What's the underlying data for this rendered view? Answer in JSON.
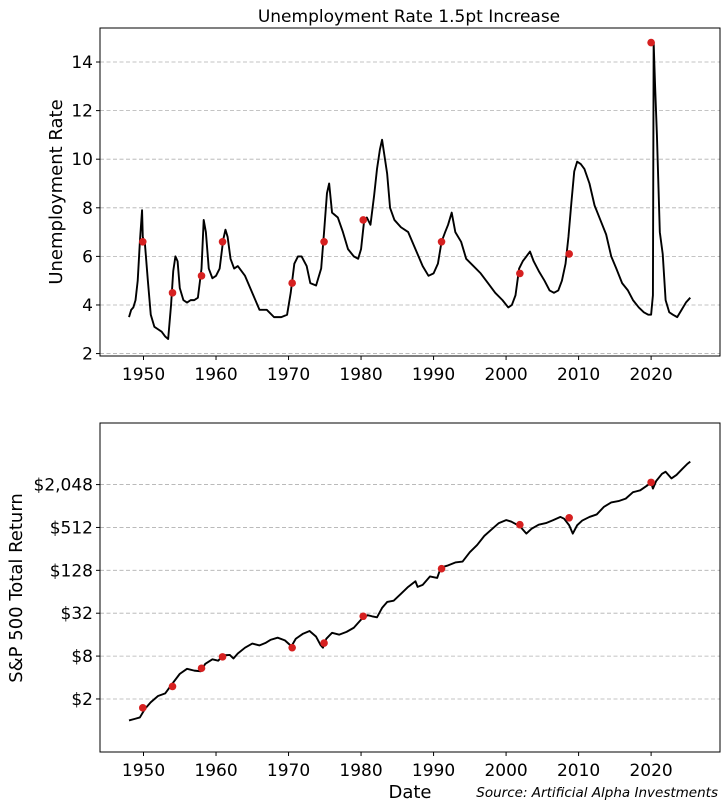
{
  "chart_data": [
    {
      "type": "line",
      "title": "Unemployment Rate 1.5pt Increase",
      "xlabel": "",
      "ylabel": "Unemployment Rate",
      "xlim": [
        1944,
        2029.5
      ],
      "ylim": [
        1.9,
        15.4
      ],
      "xticks": [
        1950,
        1960,
        1970,
        1980,
        1990,
        2000,
        2010,
        2020
      ],
      "xtick_labels": [
        "1950",
        "1960",
        "1970",
        "1980",
        "1990",
        "2000",
        "2010",
        "2020"
      ],
      "yticks": [
        2,
        4,
        6,
        8,
        10,
        12,
        14
      ],
      "ytick_labels": [
        "2",
        "4",
        "6",
        "8",
        "10",
        "12",
        "14"
      ],
      "grid": "y",
      "series": [
        {
          "name": "Unemployment Rate",
          "color": "#000000",
          "x": [
            1948.0,
            1948.3,
            1948.6,
            1948.9,
            1949.2,
            1949.5,
            1949.8,
            1949.9,
            1950.2,
            1950.6,
            1951.0,
            1951.5,
            1952.0,
            1952.5,
            1953.0,
            1953.4,
            1953.8,
            1954.1,
            1954.4,
            1954.7,
            1955.0,
            1955.5,
            1956.0,
            1956.5,
            1957.0,
            1957.5,
            1958.0,
            1958.3,
            1958.6,
            1959.0,
            1959.5,
            1960.0,
            1960.5,
            1961.0,
            1961.3,
            1961.6,
            1962.0,
            1962.5,
            1963.0,
            1964.0,
            1965.0,
            1966.0,
            1967.0,
            1968.0,
            1969.0,
            1969.8,
            1970.3,
            1970.8,
            1971.3,
            1971.8,
            1972.5,
            1973.0,
            1973.8,
            1974.5,
            1974.9,
            1975.3,
            1975.6,
            1976.0,
            1976.8,
            1977.5,
            1978.2,
            1979.0,
            1979.6,
            1980.0,
            1980.4,
            1980.8,
            1981.3,
            1981.8,
            1982.2,
            1982.6,
            1982.9,
            1983.2,
            1983.6,
            1984.0,
            1984.6,
            1985.5,
            1986.5,
            1987.5,
            1988.5,
            1989.3,
            1990.0,
            1990.6,
            1991.1,
            1991.6,
            1992.0,
            1992.5,
            1993.0,
            1993.8,
            1994.5,
            1995.5,
            1996.5,
            1997.5,
            1998.5,
            1999.5,
            2000.3,
            2000.8,
            2001.3,
            2001.8,
            2002.3,
            2002.8,
            2003.3,
            2003.8,
            2004.5,
            2005.3,
            2006.0,
            2006.6,
            2007.2,
            2007.7,
            2008.2,
            2008.6,
            2009.0,
            2009.4,
            2009.8,
            2010.3,
            2010.8,
            2011.5,
            2012.2,
            2013.0,
            2013.8,
            2014.5,
            2015.2,
            2016.0,
            2016.8,
            2017.5,
            2018.3,
            2019.0,
            2019.6,
            2020.0,
            2020.25,
            2020.35,
            2020.55,
            2020.8,
            2021.2,
            2021.6,
            2022.0,
            2022.5,
            2023.0,
            2023.6,
            2024.2,
            2024.8,
            2025.4
          ],
          "values": [
            3.5,
            3.8,
            3.9,
            4.2,
            5.0,
            6.6,
            7.9,
            6.8,
            6.5,
            5.0,
            3.6,
            3.1,
            3.0,
            2.9,
            2.7,
            2.6,
            4.0,
            5.4,
            6.0,
            5.8,
            4.7,
            4.2,
            4.1,
            4.2,
            4.2,
            4.3,
            5.5,
            7.5,
            7.0,
            5.5,
            5.1,
            5.2,
            5.5,
            6.7,
            7.1,
            6.8,
            5.9,
            5.5,
            5.6,
            5.2,
            4.5,
            3.8,
            3.8,
            3.5,
            3.5,
            3.6,
            4.5,
            5.7,
            6.0,
            6.0,
            5.6,
            4.9,
            4.8,
            5.5,
            7.0,
            8.6,
            9.0,
            7.8,
            7.6,
            7.0,
            6.3,
            6.0,
            5.9,
            6.3,
            7.4,
            7.6,
            7.3,
            8.5,
            9.6,
            10.4,
            10.8,
            10.2,
            9.4,
            8.0,
            7.5,
            7.2,
            7.0,
            6.3,
            5.6,
            5.2,
            5.3,
            5.7,
            6.6,
            7.0,
            7.3,
            7.8,
            7.0,
            6.6,
            5.9,
            5.6,
            5.3,
            4.9,
            4.5,
            4.2,
            3.9,
            4.0,
            4.4,
            5.5,
            5.8,
            6.0,
            6.2,
            5.8,
            5.4,
            5.0,
            4.6,
            4.5,
            4.6,
            5.0,
            5.7,
            6.8,
            8.2,
            9.5,
            9.9,
            9.8,
            9.6,
            9.0,
            8.1,
            7.5,
            6.9,
            6.0,
            5.5,
            4.9,
            4.6,
            4.2,
            3.9,
            3.7,
            3.6,
            3.6,
            4.4,
            14.8,
            13.0,
            11.0,
            7.0,
            6.1,
            4.2,
            3.7,
            3.6,
            3.5,
            3.8,
            4.1,
            4.3
          ]
        }
      ],
      "events": {
        "name": "1.5pt increase",
        "color": "#d62020",
        "x": [
          1949.9,
          1954.0,
          1958.0,
          1960.9,
          1970.5,
          1974.9,
          1980.3,
          1991.1,
          2001.9,
          2008.7,
          2020.0
        ],
        "values": [
          6.6,
          4.5,
          5.2,
          6.6,
          4.9,
          6.6,
          7.5,
          6.6,
          5.3,
          6.1,
          14.8
        ]
      }
    },
    {
      "type": "line",
      "title": "",
      "xlabel": "Date",
      "ylabel": "S&P 500 Total Return",
      "yscale": "log2",
      "xlim": [
        1944,
        2029.5
      ],
      "ylim": [
        0.36,
        15000
      ],
      "xticks": [
        1950,
        1960,
        1970,
        1980,
        1990,
        2000,
        2010,
        2020
      ],
      "xtick_labels": [
        "1950",
        "1960",
        "1970",
        "1980",
        "1990",
        "2000",
        "2010",
        "2020"
      ],
      "yticks": [
        2,
        8,
        32,
        128,
        512,
        2048
      ],
      "ytick_labels": [
        "$2",
        "$8",
        "$32",
        "$128",
        "$512",
        "$2,048"
      ],
      "grid": "y",
      "series": [
        {
          "name": "S&P 500 Total Return",
          "color": "#000000",
          "x": [
            1948.0,
            1948.8,
            1949.5,
            1950.2,
            1951.0,
            1952.0,
            1953.0,
            1954.0,
            1955.0,
            1956.0,
            1957.0,
            1957.9,
            1958.5,
            1959.5,
            1960.3,
            1961.0,
            1961.9,
            1962.4,
            1963.0,
            1964.0,
            1965.0,
            1966.0,
            1966.8,
            1967.5,
            1968.5,
            1969.5,
            1970.4,
            1971.0,
            1972.0,
            1972.9,
            1973.8,
            1974.4,
            1974.75,
            1975.2,
            1976.0,
            1977.0,
            1978.0,
            1979.0,
            1980.0,
            1980.9,
            1981.5,
            1982.2,
            1982.9,
            1983.6,
            1984.5,
            1985.5,
            1986.5,
            1987.5,
            1987.8,
            1988.5,
            1989.5,
            1990.5,
            1991.0,
            1992.0,
            1993.0,
            1994.0,
            1995.0,
            1996.0,
            1997.0,
            1998.0,
            1999.0,
            2000.0,
            2000.7,
            2001.5,
            2002.0,
            2002.8,
            2003.5,
            2004.5,
            2005.5,
            2006.5,
            2007.5,
            2008.0,
            2008.7,
            2009.2,
            2009.8,
            2010.5,
            2011.5,
            2012.5,
            2013.5,
            2014.5,
            2015.5,
            2016.5,
            2017.5,
            2018.5,
            2019.5,
            2020.0,
            2020.25,
            2020.7,
            2021.5,
            2022.0,
            2022.8,
            2023.5,
            2024.3,
            2025.0,
            2025.4
          ],
          "values": [
            1.0,
            1.05,
            1.1,
            1.45,
            1.8,
            2.2,
            2.4,
            3.3,
            4.5,
            5.3,
            5.0,
            4.9,
            6.2,
            7.2,
            6.9,
            8.2,
            8.3,
            7.4,
            8.7,
            10.5,
            12.0,
            11.3,
            12.2,
            13.5,
            14.5,
            13.3,
            11.0,
            14.0,
            16.5,
            18.0,
            15.0,
            11.5,
            10.5,
            14.0,
            17.0,
            16.0,
            17.5,
            20.0,
            26.0,
            30.0,
            29.0,
            28.0,
            38.0,
            46.0,
            48.0,
            60.0,
            75.0,
            90.0,
            75.0,
            80.0,
            105.0,
            100.0,
            140.0,
            150.0,
            165.0,
            170.0,
            230.0,
            290.0,
            390.0,
            480.0,
            590.0,
            650.0,
            620.0,
            560.0,
            520.0,
            420.0,
            490.0,
            560.0,
            590.0,
            650.0,
            720.0,
            680.0,
            550.0,
            420.0,
            550.0,
            640.0,
            720.0,
            780.0,
            1000.0,
            1150.0,
            1200.0,
            1300.0,
            1600.0,
            1700.0,
            2000.0,
            2200.0,
            1800.0,
            2300.0,
            2900.0,
            3100.0,
            2500.0,
            2800.0,
            3400.0,
            4000.0,
            4300.0
          ]
        }
      ],
      "events": {
        "name": "1.5pt increase",
        "color": "#d62020",
        "x": [
          1949.9,
          1954.0,
          1958.0,
          1960.9,
          1970.5,
          1974.9,
          1980.3,
          1991.1,
          2001.9,
          2008.7,
          2020.0
        ],
        "values": [
          1.5,
          3.0,
          5.4,
          7.8,
          10.5,
          12.2,
          29.0,
          135.0,
          560.0,
          700.0,
          2200.0
        ]
      }
    }
  ],
  "footer": {
    "source": "Source: Artificial Alpha Investments"
  }
}
